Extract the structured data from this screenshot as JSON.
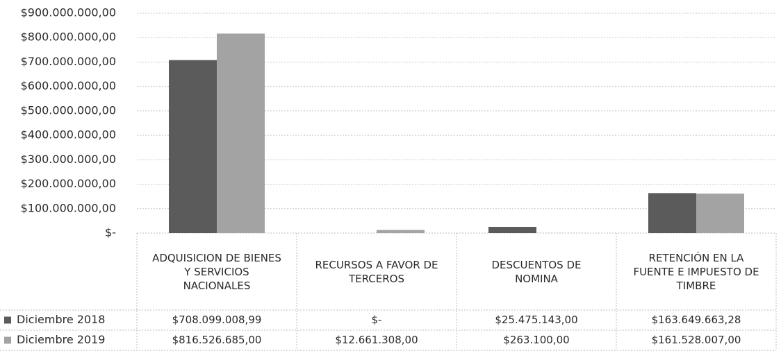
{
  "chart_data": {
    "type": "bar",
    "categories": [
      "ADQUISICION DE BIENES Y SERVICIOS NACIONALES",
      "RECURSOS A FAVOR DE TERCEROS",
      "DESCUENTOS DE NOMINA",
      "RETENCIÓN EN LA FUENTE E IMPUESTO DE TIMBRE"
    ],
    "series": [
      {
        "name": "Diciembre 2018",
        "color": "#5b5b5b",
        "values": [
          708099008.99,
          0,
          25475143,
          163649663.28
        ],
        "value_labels": [
          "$708.099.008,99",
          "$-",
          "$25.475.143,00",
          "$163.649.663,28"
        ]
      },
      {
        "name": "Diciembre 2019",
        "color": "#a3a3a3",
        "values": [
          816526685,
          12661308,
          263100,
          161528007
        ],
        "value_labels": [
          "$816.526.685,00",
          "$12.661.308,00",
          "$263.100,00",
          "$161.528.007,00"
        ]
      }
    ],
    "ylim": [
      0,
      900000000
    ],
    "yticks": [
      {
        "value": 0,
        "label": "$-"
      },
      {
        "value": 100000000,
        "label": "$100.000.000,00"
      },
      {
        "value": 200000000,
        "label": "$200.000.000,00"
      },
      {
        "value": 300000000,
        "label": "$300.000.000,00"
      },
      {
        "value": 400000000,
        "label": "$400.000.000,00"
      },
      {
        "value": 500000000,
        "label": "$500.000.000,00"
      },
      {
        "value": 600000000,
        "label": "$600.000.000,00"
      },
      {
        "value": 700000000,
        "label": "$700.000.000,00"
      },
      {
        "value": 800000000,
        "label": "$800.000.000,00"
      },
      {
        "value": 900000000,
        "label": "$900.000.000,00"
      }
    ],
    "grid": true
  }
}
